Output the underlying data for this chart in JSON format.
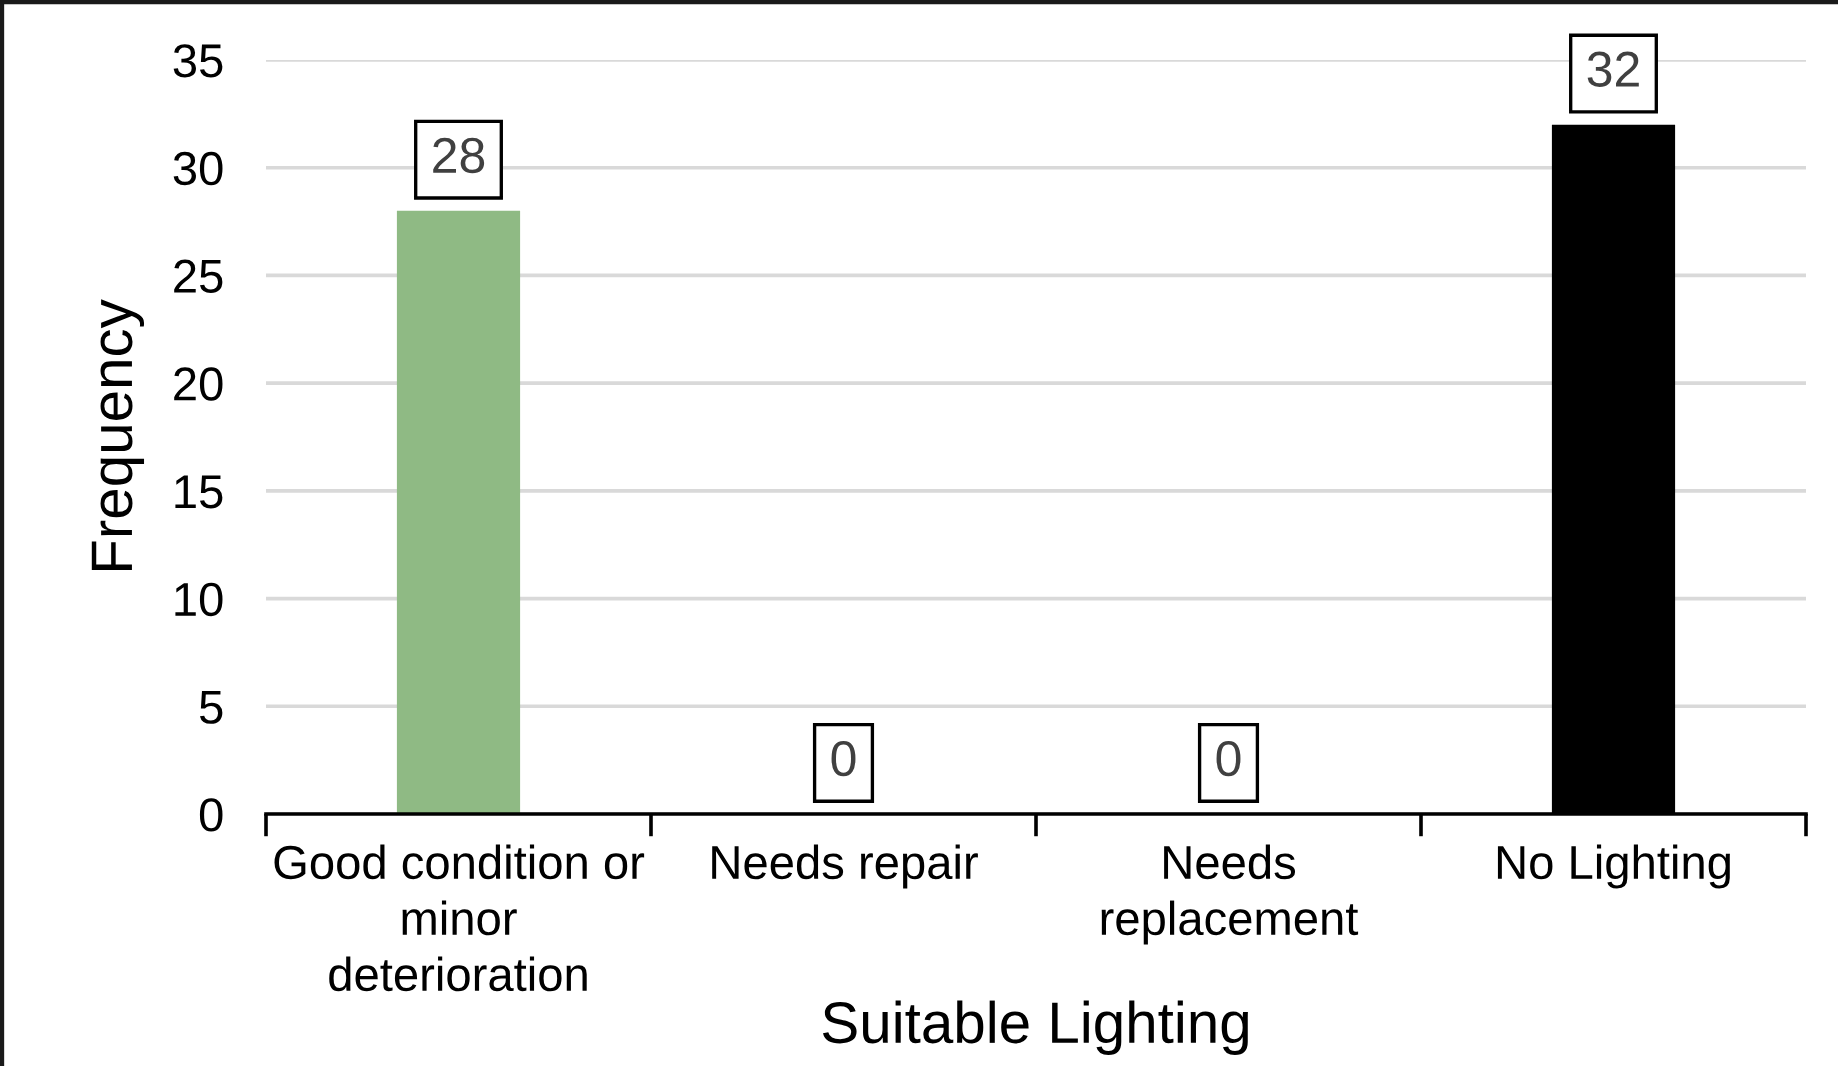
{
  "chart_data": {
    "type": "bar",
    "xlabel": "Suitable Lighting",
    "ylabel": "Frequency",
    "categories": [
      "Good condition or\nminor\ndeterioration",
      "Needs repair",
      "Needs\nreplacement",
      "No Lighting"
    ],
    "values": [
      28,
      0,
      0,
      32
    ],
    "colors": [
      "#8fba84",
      null,
      null,
      "#000000"
    ],
    "ylim": [
      0,
      35
    ],
    "yticks": [
      0,
      5,
      10,
      15,
      20,
      25,
      30,
      35
    ],
    "grid": "y",
    "data_labels": true
  }
}
